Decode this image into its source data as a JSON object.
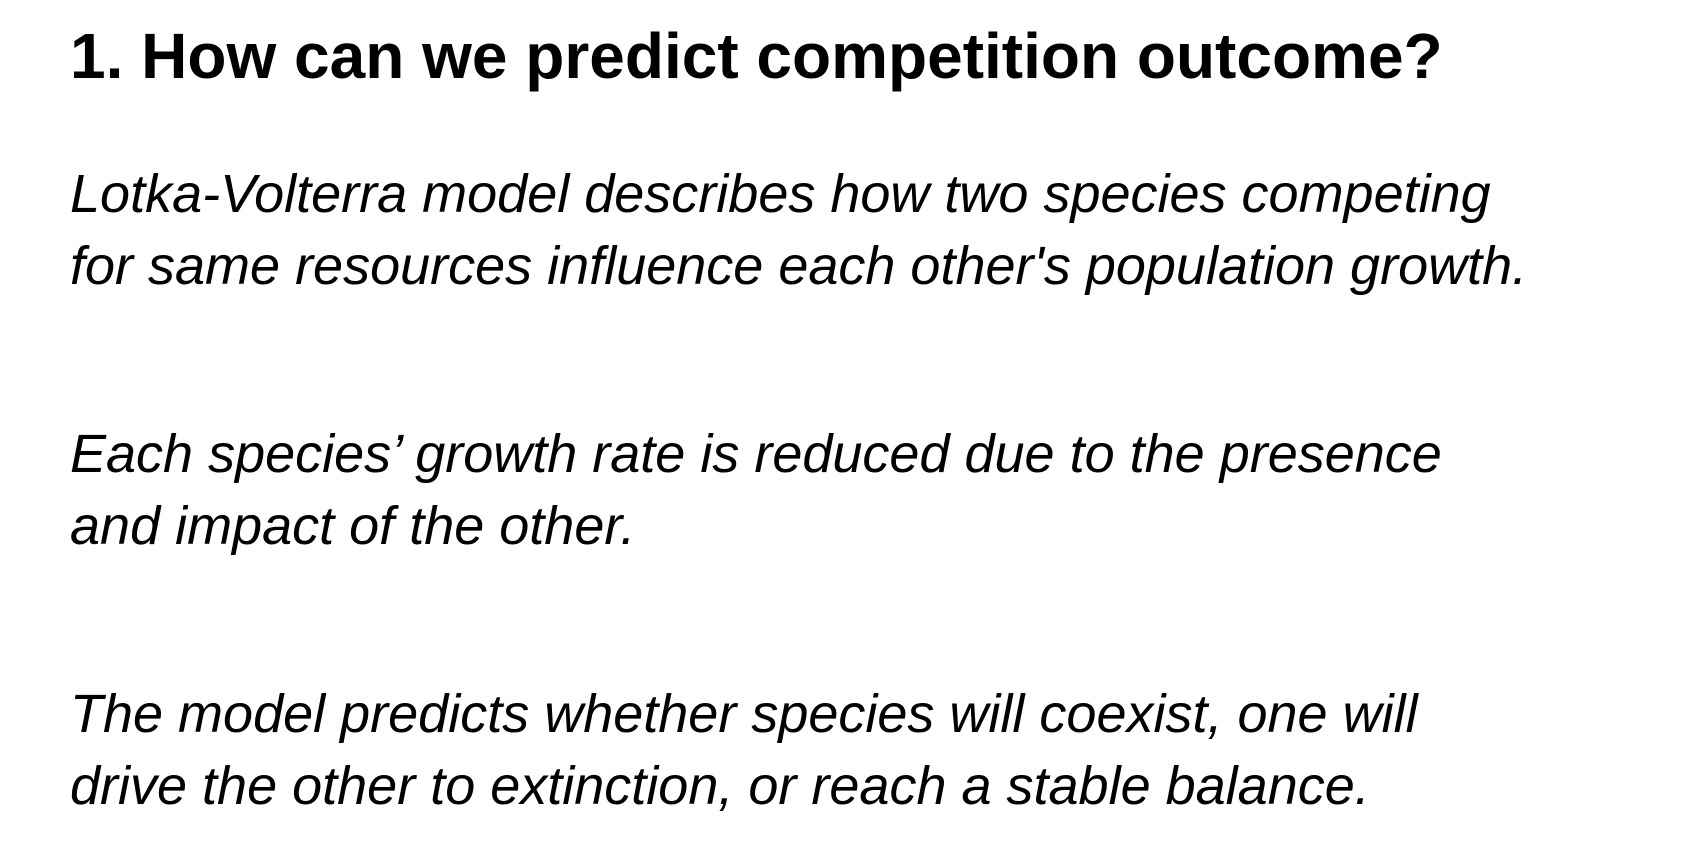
{
  "slide": {
    "title": "1. How can we predict competition outcome?",
    "paragraphs": [
      {
        "lines": [
          "Lotka-Volterra model describes how two species competing",
          "for same resources influence each other's population growth."
        ]
      },
      {
        "lines": [
          "Each species’ growth rate is reduced due to the presence",
          "and impact of the other."
        ]
      },
      {
        "lines": [
          "The model predicts whether species will coexist, one will",
          "drive the other to extinction, or reach a stable balance."
        ]
      }
    ]
  },
  "colors": {
    "background": "#ffffff",
    "text": "#000000"
  }
}
